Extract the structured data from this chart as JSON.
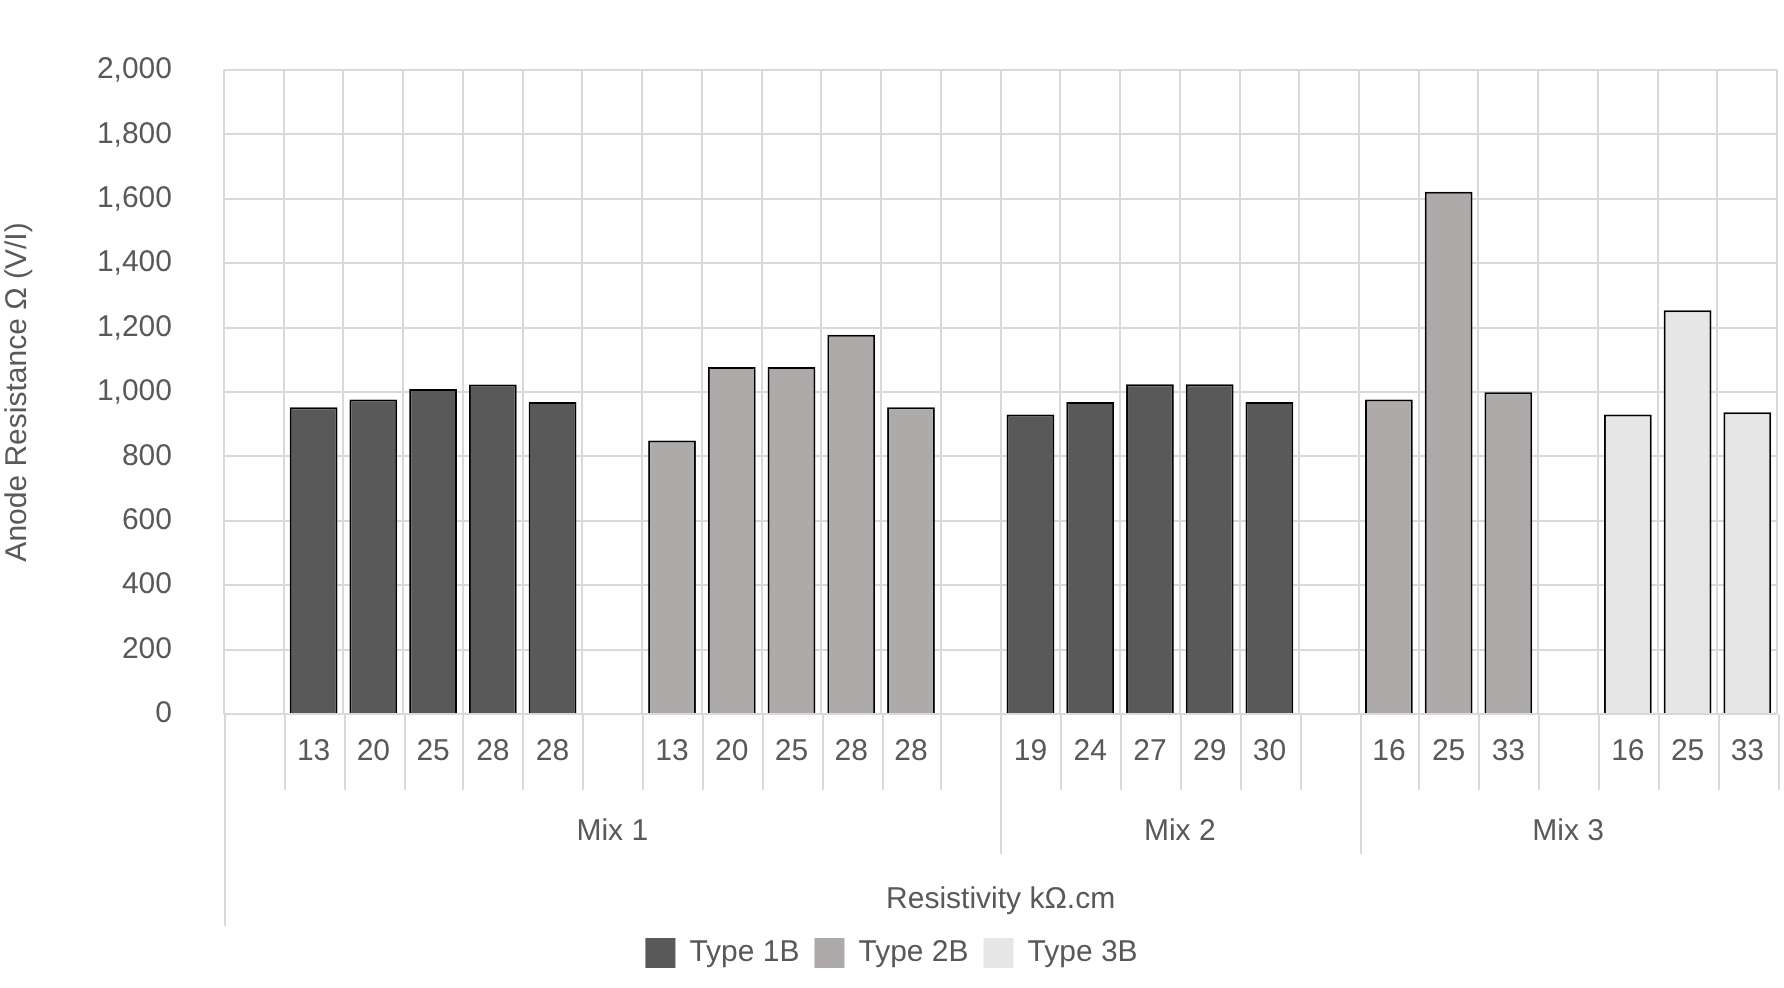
{
  "chart_data": {
    "type": "bar",
    "xlabel": "Resistivity kΩ.cm",
    "ylabel": "Anode Resistance Ω (V/I)",
    "categories": [
      null,
      "13",
      "20",
      "25",
      "28",
      "28",
      null,
      "13",
      "20",
      "25",
      "28",
      "28",
      null,
      "19",
      "24",
      "27",
      "29",
      "30",
      null,
      "16",
      "25",
      "33",
      null,
      "16",
      "25",
      "33"
    ],
    "series": [
      {
        "name": "Type 1B",
        "color": "#595959",
        "values": [
          null,
          953,
          977,
          1009,
          1023,
          969,
          null,
          null,
          null,
          null,
          null,
          null,
          null,
          930,
          969,
          1024,
          1024,
          969,
          null,
          null,
          null,
          null,
          null,
          null,
          null,
          null
        ]
      },
      {
        "name": "Type 2B",
        "color": "#aeaaaa",
        "values": [
          null,
          null,
          null,
          null,
          null,
          null,
          null,
          849,
          1078,
          1078,
          1178,
          953,
          null,
          null,
          null,
          null,
          null,
          null,
          null,
          977,
          1622,
          999,
          null,
          null,
          null,
          null
        ]
      },
      {
        "name": "Type 3B",
        "color": "#e7e6e6",
        "values": [
          null,
          null,
          null,
          null,
          null,
          null,
          null,
          null,
          null,
          null,
          null,
          null,
          null,
          null,
          null,
          null,
          null,
          null,
          null,
          null,
          null,
          null,
          null,
          930,
          1254,
          937
        ]
      }
    ],
    "annotations": [
      "Mix 1",
      "Mix 2",
      "Mix 3"
    ],
    "ylim": [
      0,
      2000
    ],
    "yticks": [
      0,
      200,
      400,
      600,
      800,
      {
        "value": 1000,
        "label": "1,000"
      },
      {
        "value": 1200,
        "label": "1,200"
      },
      {
        "value": 1400,
        "label": "1,400"
      },
      {
        "value": 1600,
        "label": "1,600"
      },
      {
        "value": 1800,
        "label": "1,800"
      },
      {
        "value": 2000,
        "label": "2,000"
      }
    ],
    "grid": true,
    "legend": "bottom"
  }
}
